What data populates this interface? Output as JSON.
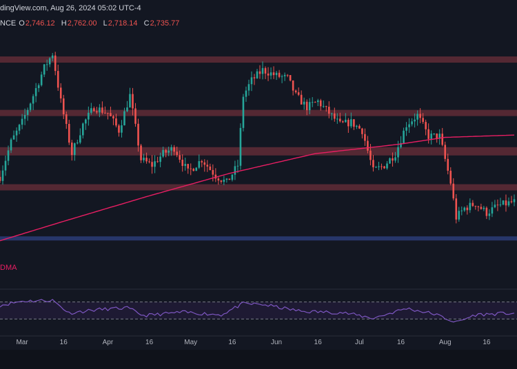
{
  "header": {
    "source_line": "dingView.com, Aug 26, 2024 05:02 UTC-4",
    "exchange_fragment": "NCE",
    "open_label": "O",
    "open_value": "2,746.12",
    "high_label": "H",
    "high_value": "2,762.00",
    "low_label": "L",
    "low_value": "2,718.14",
    "close_label": "C",
    "close_value": "2,735.77"
  },
  "indicator_label": "DMA",
  "colors": {
    "background": "#131722",
    "up_candle": "#26a69a",
    "down_candle": "#ef5350",
    "resistance_zone": "#5c2a35",
    "support_zone": "#2a3a72",
    "moving_average": "#e91e63",
    "rsi_line": "#7e57c2",
    "rsi_band": "#1e1a33"
  },
  "chart_data": {
    "type": "candlestick",
    "x_range": [
      "2024-02-22",
      "2024-08-26"
    ],
    "x_ticks": [
      {
        "date": "2024-03-01",
        "label": "Mar"
      },
      {
        "date": "2024-03-16",
        "label": "16"
      },
      {
        "date": "2024-04-01",
        "label": "Apr"
      },
      {
        "date": "2024-04-16",
        "label": "16"
      },
      {
        "date": "2024-05-01",
        "label": "May"
      },
      {
        "date": "2024-05-16",
        "label": "16"
      },
      {
        "date": "2024-06-01",
        "label": "Jun"
      },
      {
        "date": "2024-06-16",
        "label": "16"
      },
      {
        "date": "2024-07-01",
        "label": "Jul"
      },
      {
        "date": "2024-07-16",
        "label": "16"
      },
      {
        "date": "2024-08-01",
        "label": "Aug"
      },
      {
        "date": "2024-08-16",
        "label": "16"
      }
    ],
    "y_range": [
      2250,
      4200
    ],
    "close_anchors": [
      [
        "2024-02-22",
        2950
      ],
      [
        "2024-02-26",
        3250
      ],
      [
        "2024-03-01",
        3420
      ],
      [
        "2024-03-05",
        3650
      ],
      [
        "2024-03-09",
        3890
      ],
      [
        "2024-03-12",
        4010
      ],
      [
        "2024-03-15",
        3600
      ],
      [
        "2024-03-19",
        3150
      ],
      [
        "2024-03-23",
        3400
      ],
      [
        "2024-03-27",
        3550
      ],
      [
        "2024-04-01",
        3500
      ],
      [
        "2024-04-05",
        3350
      ],
      [
        "2024-04-09",
        3650
      ],
      [
        "2024-04-13",
        3100
      ],
      [
        "2024-04-17",
        3050
      ],
      [
        "2024-04-21",
        3150
      ],
      [
        "2024-04-25",
        3200
      ],
      [
        "2024-04-30",
        2990
      ],
      [
        "2024-05-05",
        3100
      ],
      [
        "2024-05-10",
        2960
      ],
      [
        "2024-05-14",
        2900
      ],
      [
        "2024-05-18",
        3050
      ],
      [
        "2024-05-20",
        3650
      ],
      [
        "2024-05-23",
        3780
      ],
      [
        "2024-05-27",
        3870
      ],
      [
        "2024-06-01",
        3820
      ],
      [
        "2024-06-05",
        3800
      ],
      [
        "2024-06-08",
        3650
      ],
      [
        "2024-06-12",
        3550
      ],
      [
        "2024-06-16",
        3600
      ],
      [
        "2024-06-20",
        3500
      ],
      [
        "2024-06-24",
        3400
      ],
      [
        "2024-06-28",
        3420
      ],
      [
        "2024-07-02",
        3350
      ],
      [
        "2024-07-06",
        3000
      ],
      [
        "2024-07-10",
        3050
      ],
      [
        "2024-07-14",
        3150
      ],
      [
        "2024-07-18",
        3400
      ],
      [
        "2024-07-22",
        3480
      ],
      [
        "2024-07-26",
        3300
      ],
      [
        "2024-07-30",
        3300
      ],
      [
        "2024-08-03",
        2900
      ],
      [
        "2024-08-05",
        2600
      ],
      [
        "2024-08-08",
        2680
      ],
      [
        "2024-08-12",
        2720
      ],
      [
        "2024-08-16",
        2640
      ],
      [
        "2024-08-20",
        2700
      ],
      [
        "2024-08-26",
        2735.77
      ]
    ],
    "moving_average_200": [
      [
        "2024-02-22",
        2400
      ],
      [
        "2024-03-15",
        2560
      ],
      [
        "2024-04-15",
        2780
      ],
      [
        "2024-05-15",
        2980
      ],
      [
        "2024-06-15",
        3150
      ],
      [
        "2024-07-15",
        3230
      ],
      [
        "2024-08-01",
        3290
      ],
      [
        "2024-08-26",
        3310
      ]
    ],
    "horizontal_zones": [
      {
        "kind": "resistance",
        "price": 3960
      },
      {
        "kind": "resistance",
        "price": 3500
      },
      {
        "kind": "resistance",
        "price": 3170
      },
      {
        "kind": "resistance",
        "price": 2860
      },
      {
        "kind": "support",
        "price": 2420
      }
    ],
    "rsi": {
      "y_range": [
        0,
        100
      ],
      "overbought": 70,
      "oversold": 30,
      "anchors": [
        [
          "2024-02-22",
          62
        ],
        [
          "2024-03-01",
          72
        ],
        [
          "2024-03-12",
          74
        ],
        [
          "2024-03-18",
          44
        ],
        [
          "2024-03-28",
          52
        ],
        [
          "2024-04-08",
          56
        ],
        [
          "2024-04-14",
          38
        ],
        [
          "2024-04-28",
          46
        ],
        [
          "2024-05-12",
          40
        ],
        [
          "2024-05-20",
          66
        ],
        [
          "2024-05-27",
          64
        ],
        [
          "2024-06-10",
          48
        ],
        [
          "2024-06-25",
          45
        ],
        [
          "2024-07-06",
          32
        ],
        [
          "2024-07-18",
          55
        ],
        [
          "2024-07-28",
          42
        ],
        [
          "2024-08-05",
          22
        ],
        [
          "2024-08-12",
          40
        ],
        [
          "2024-08-26",
          44
        ]
      ]
    }
  }
}
